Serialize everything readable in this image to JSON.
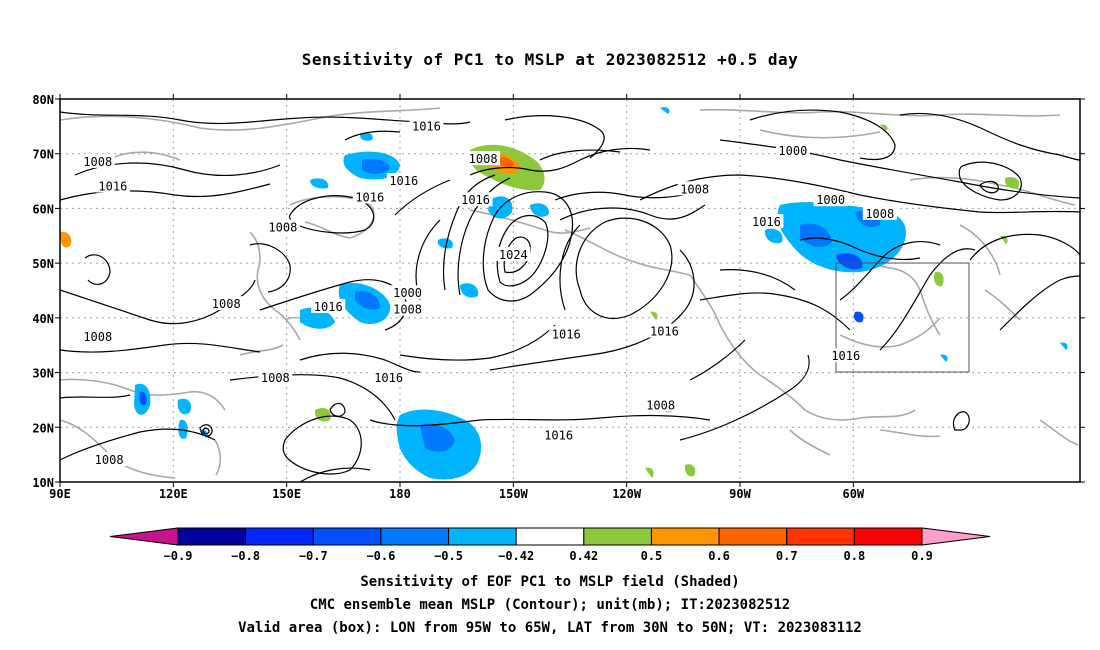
{
  "title": "Sensitivity of PC1 to MSLP at 2023082512 +0.5 day",
  "map": {
    "lat_ticks": [
      "80N",
      "70N",
      "60N",
      "50N",
      "40N",
      "30N",
      "20N",
      "10N"
    ],
    "lon_ticks": [
      "90E",
      "120E",
      "150E",
      "180",
      "150W",
      "120W",
      "90W",
      "60W"
    ],
    "contour_labels": [
      {
        "text": "1016",
        "lon": -173,
        "lat": 75
      },
      {
        "text": "1008",
        "lon": 100,
        "lat": 68.5
      },
      {
        "text": "1008",
        "lon": -158,
        "lat": 69
      },
      {
        "text": "1000",
        "lon": -76,
        "lat": 70.5
      },
      {
        "text": "1016",
        "lon": 104,
        "lat": 64
      },
      {
        "text": "1016",
        "lon": -179,
        "lat": 65
      },
      {
        "text": "1016",
        "lon": -188,
        "lat": 62
      },
      {
        "text": "1016",
        "lon": -160,
        "lat": 61.5
      },
      {
        "text": "1008",
        "lon": -102,
        "lat": 63.5
      },
      {
        "text": "1000",
        "lon": -66,
        "lat": 61.5
      },
      {
        "text": "1008",
        "lon": -53,
        "lat": 59
      },
      {
        "text": "1008",
        "lon": 149,
        "lat": 56.5
      },
      {
        "text": "1016",
        "lon": -83,
        "lat": 57.5
      },
      {
        "text": "1024",
        "lon": -150,
        "lat": 51.5
      },
      {
        "text": "1000",
        "lon": -178,
        "lat": 44.5
      },
      {
        "text": "1008",
        "lon": -178,
        "lat": 41.5
      },
      {
        "text": "1008",
        "lon": 134,
        "lat": 42.5
      },
      {
        "text": "1016",
        "lon": 161,
        "lat": 42
      },
      {
        "text": "1008",
        "lon": 100,
        "lat": 36.5
      },
      {
        "text": "1016",
        "lon": -136,
        "lat": 37
      },
      {
        "text": "1016",
        "lon": -110,
        "lat": 37.5
      },
      {
        "text": "1016",
        "lon": -183,
        "lat": 29
      },
      {
        "text": "1008",
        "lon": 147,
        "lat": 29
      },
      {
        "text": "1016",
        "lon": -62,
        "lat": 33
      },
      {
        "text": "1008",
        "lon": -111,
        "lat": 24
      },
      {
        "text": "1016",
        "lon": -138,
        "lat": 18.5
      },
      {
        "text": "1008",
        "lon": 103,
        "lat": 14
      }
    ]
  },
  "colorbar": {
    "labels": [
      "-0.9",
      "-0.8",
      "-0.7",
      "-0.6",
      "-0.5",
      "-0.42",
      "0.42",
      "0.5",
      "0.6",
      "0.7",
      "0.8",
      "0.9"
    ],
    "colors": {
      "low_end": "#c8148c",
      "bins": [
        "#0000a0",
        "#0028ff",
        "#0050ff",
        "#0078ff",
        "#00b4ff",
        "#ffffff",
        "#8cc83c",
        "#ff9600",
        "#ff6400",
        "#ff3200",
        "#ff0000"
      ],
      "high_end": "#ff9ec8"
    }
  },
  "captions": [
    "Sensitivity of EOF PC1 to MSLP field (Shaded)",
    "CMC ensemble mean MSLP (Contour); unit(mb); IT:2023082512",
    "Valid area (box): LON from 95W to 65W, LAT from 30N to 50N; VT: 2023083112"
  ]
}
